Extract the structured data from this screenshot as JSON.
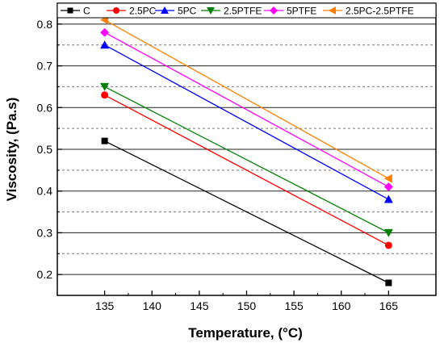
{
  "chart_data": {
    "type": "line",
    "xlabel": "Temperature, (°C)",
    "ylabel": "Viscosity, (Pa.s)",
    "x": [
      135,
      165
    ],
    "xlim": [
      130,
      170
    ],
    "ylim": [
      0.15,
      0.85
    ],
    "x_ticks": [
      "135",
      "140",
      "145",
      "150",
      "155",
      "160",
      "165"
    ],
    "y_ticks": [
      "0.2",
      "0.3",
      "0.4",
      "0.5",
      "0.6",
      "0.7",
      "0.8"
    ],
    "grid": "horizontal, solid at labeled ticks, dashed at minor ticks",
    "legend_position": "top",
    "series": [
      {
        "name": "C",
        "values": [
          0.52,
          0.18
        ],
        "color": "#000000",
        "marker": "square"
      },
      {
        "name": "2.5PC",
        "values": [
          0.63,
          0.27
        ],
        "color": "#ff0000",
        "marker": "circle"
      },
      {
        "name": "5PC",
        "values": [
          0.75,
          0.38
        ],
        "color": "#0000ff",
        "marker": "triangle-up"
      },
      {
        "name": "2.5PTFE",
        "values": [
          0.65,
          0.3
        ],
        "color": "#008000",
        "marker": "triangle-down"
      },
      {
        "name": "5PTFE",
        "values": [
          0.78,
          0.41
        ],
        "color": "#ff00ff",
        "marker": "diamond"
      },
      {
        "name": "2.5PC-2.5PTFE",
        "values": [
          0.81,
          0.43
        ],
        "color": "#ff8000",
        "marker": "triangle-left"
      }
    ]
  }
}
